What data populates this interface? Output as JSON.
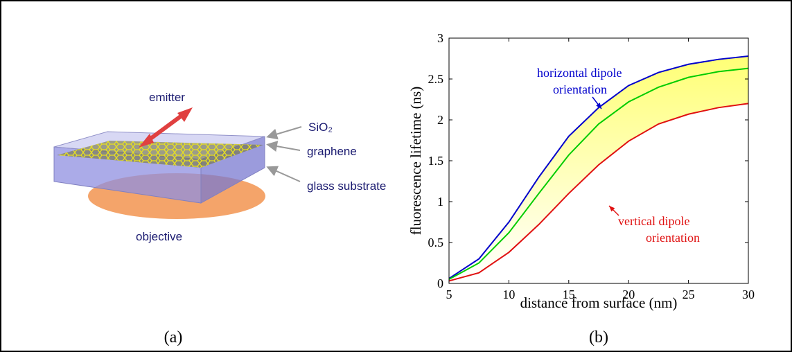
{
  "diagram": {
    "emitter": "emitter",
    "sio2": "SiO₂",
    "graphene": "graphene",
    "substrate": "glass substrate",
    "objective": "objective",
    "caption": "(a)"
  },
  "chart_data": {
    "type": "line",
    "caption": "(b)",
    "x_label": "distance from surface (nm)",
    "y_label": "fluorescence lifetime (ns)",
    "x": [
      5,
      7.5,
      10,
      12.5,
      15,
      17.5,
      20,
      22.5,
      25,
      27.5,
      30
    ],
    "series": [
      {
        "color": "#0000cc",
        "values": [
          0.06,
          0.3,
          0.75,
          1.3,
          1.8,
          2.15,
          2.42,
          2.58,
          2.68,
          2.74,
          2.78
        ]
      },
      {
        "color": "#00cc00",
        "values": [
          0.05,
          0.25,
          0.62,
          1.1,
          1.57,
          1.95,
          2.22,
          2.4,
          2.52,
          2.59,
          2.63
        ]
      },
      {
        "color": "#e01010",
        "values": [
          0.03,
          0.13,
          0.38,
          0.72,
          1.1,
          1.45,
          1.74,
          1.95,
          2.07,
          2.15,
          2.2
        ]
      }
    ],
    "fill_color": "#ffff66",
    "annotations": [
      {
        "lines": [
          "horizontal dipole",
          "orientation"
        ],
        "color": "#0000cc"
      },
      {
        "lines": [
          "vertical dipole",
          "orientation"
        ],
        "color": "#e01010"
      }
    ],
    "xlim": [
      5,
      30
    ],
    "xticks": [
      5,
      10,
      15,
      20,
      25,
      30
    ],
    "ylim": [
      0,
      3
    ],
    "yticks": [
      0,
      0.5,
      1,
      1.5,
      2,
      2.5,
      3
    ]
  }
}
